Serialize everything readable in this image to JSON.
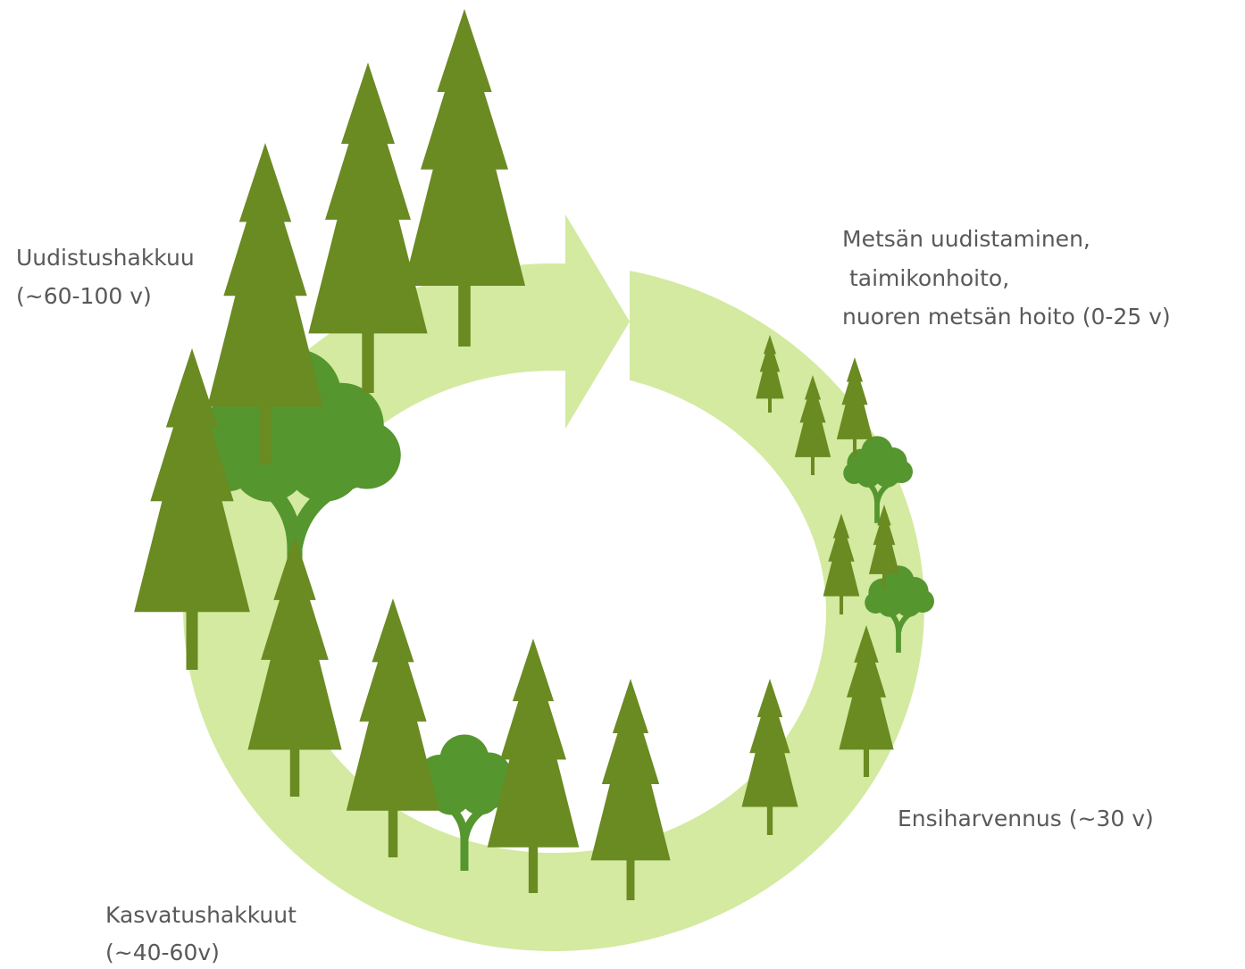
{
  "labels": [
    {
      "lines": [
        "Uudistushakkuu",
        "(~60-100 v)"
      ]
    },
    {
      "lines": [
        "Metsän uudistaminen,",
        " taimikonhoito,",
        "nuoren metsän hoito (0-25 v)"
      ]
    },
    {
      "lines": [
        "Ensiharvennus (~30 v)"
      ]
    },
    {
      "lines": [
        "Kasvatushakkuut",
        "(~40-60v)"
      ]
    }
  ]
}
